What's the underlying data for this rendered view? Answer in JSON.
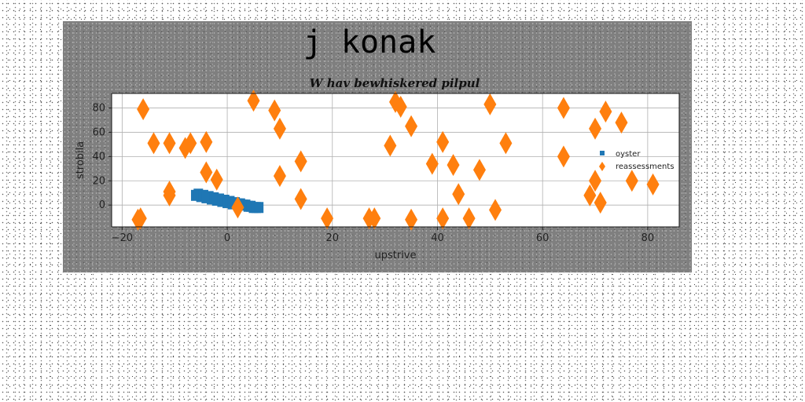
{
  "chart_data": {
    "type": "scatter",
    "suptitle": "j  konak",
    "title": "W hav bewhiskered pilpul",
    "xlabel": "upstrive",
    "ylabel": "strobila",
    "xlim": [
      -22,
      86
    ],
    "ylim": [
      -18,
      92
    ],
    "xticks": [
      -20,
      0,
      20,
      40,
      60,
      80
    ],
    "yticks": [
      0,
      20,
      40,
      60,
      80
    ],
    "grid": true,
    "legend_position": "center-right",
    "series": [
      {
        "name": "oyster",
        "marker": "square",
        "color": "#1f77b4",
        "points": [
          [
            -6,
            8
          ],
          [
            -5.5,
            9
          ],
          [
            -5,
            7
          ],
          [
            -4.5,
            8
          ],
          [
            -4,
            6
          ],
          [
            -3.5,
            7
          ],
          [
            -3,
            5
          ],
          [
            -2.5,
            6
          ],
          [
            -2,
            4
          ],
          [
            -1.5,
            5
          ],
          [
            -1,
            3
          ],
          [
            -0.5,
            4
          ],
          [
            0,
            2
          ],
          [
            0.5,
            3
          ],
          [
            1,
            1
          ],
          [
            1.5,
            2
          ],
          [
            2,
            1
          ],
          [
            2.5,
            1
          ],
          [
            3,
            0
          ],
          [
            3.5,
            0
          ],
          [
            4,
            -1
          ],
          [
            4.5,
            -1
          ],
          [
            5,
            -2
          ],
          [
            5.5,
            -2
          ],
          [
            6,
            -2
          ]
        ]
      },
      {
        "name": "reassessments",
        "marker": "diamond",
        "color": "#ff7f0e",
        "points": [
          [
            -17,
            -12
          ],
          [
            -16.5,
            -11
          ],
          [
            -16,
            79
          ],
          [
            -14,
            51
          ],
          [
            -11,
            51
          ],
          [
            -11,
            11
          ],
          [
            -11,
            8
          ],
          [
            -8,
            47
          ],
          [
            -7,
            51
          ],
          [
            -4,
            52
          ],
          [
            -4,
            27
          ],
          [
            -2,
            21
          ],
          [
            2,
            -2
          ],
          [
            5,
            86
          ],
          [
            9,
            78
          ],
          [
            10,
            63
          ],
          [
            10,
            24
          ],
          [
            14,
            36
          ],
          [
            14,
            5
          ],
          [
            19,
            -11
          ],
          [
            27,
            -11
          ],
          [
            28,
            -11
          ],
          [
            31,
            49
          ],
          [
            32,
            85
          ],
          [
            33,
            81
          ],
          [
            35,
            65
          ],
          [
            35,
            -12
          ],
          [
            39,
            34
          ],
          [
            41,
            52
          ],
          [
            41,
            -11
          ],
          [
            43,
            33
          ],
          [
            44,
            9
          ],
          [
            46,
            -11
          ],
          [
            48,
            29
          ],
          [
            50,
            83
          ],
          [
            51,
            -4
          ],
          [
            53,
            51
          ],
          [
            64,
            80
          ],
          [
            64,
            40
          ],
          [
            69,
            8
          ],
          [
            70,
            63
          ],
          [
            70,
            20
          ],
          [
            71,
            2
          ],
          [
            72,
            77
          ],
          [
            75,
            68
          ],
          [
            77,
            20
          ],
          [
            81,
            17
          ]
        ]
      }
    ]
  }
}
